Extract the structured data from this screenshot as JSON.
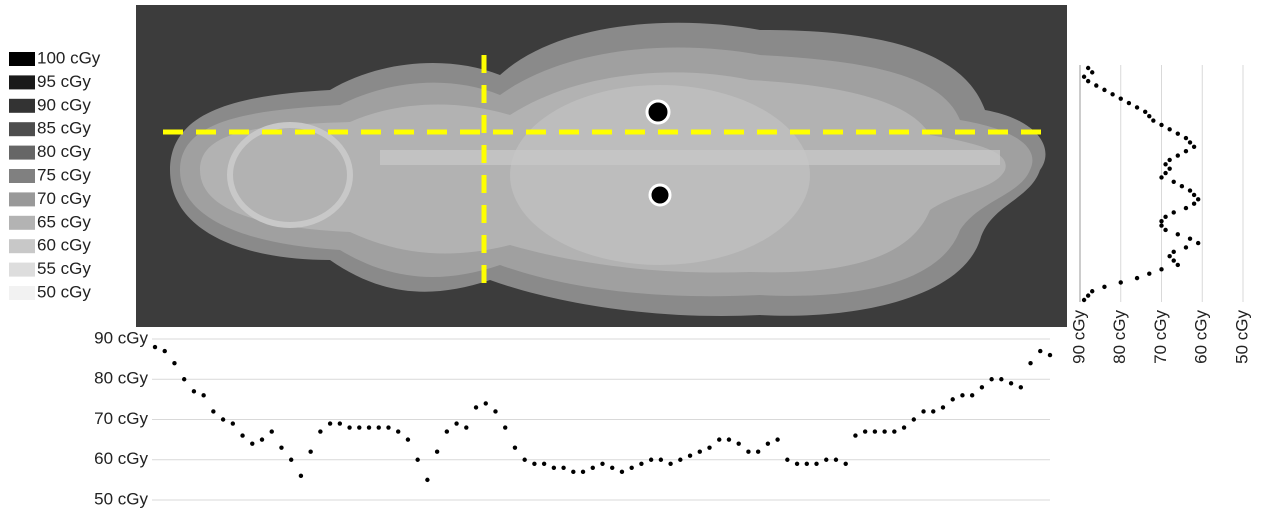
{
  "legend": [
    {
      "label": "100 cGy",
      "color": "#000000"
    },
    {
      "label": "95 cGy",
      "color": "#1a1a1a"
    },
    {
      "label": "90 cGy",
      "color": "#333333"
    },
    {
      "label": "85 cGy",
      "color": "#4d4d4d"
    },
    {
      "label": "80 cGy",
      "color": "#666666"
    },
    {
      "label": "75 cGy",
      "color": "#808080"
    },
    {
      "label": "70 cGy",
      "color": "#999999"
    },
    {
      "label": "65 cGy",
      "color": "#b3b3b3"
    },
    {
      "label": "60 cGy",
      "color": "#c8c8c8"
    },
    {
      "label": "55 cGy",
      "color": "#dddddd"
    },
    {
      "label": "50 cGy",
      "color": "#f2f2f2"
    }
  ],
  "chart_data": [
    {
      "type": "scatter",
      "color": "#000000",
      "grid": true,
      "ylim": [
        50,
        90
      ],
      "yticks": [
        {
          "value": 90,
          "label": "90 cGy"
        },
        {
          "value": 80,
          "label": "80 cGy"
        },
        {
          "value": 70,
          "label": "70 cGy"
        },
        {
          "value": 60,
          "label": "60 cGy"
        },
        {
          "value": 50,
          "label": "50 cGy"
        }
      ],
      "values": [
        88,
        87,
        84,
        80,
        77,
        76,
        72,
        70,
        69,
        66,
        64,
        65,
        67,
        63,
        60,
        56,
        62,
        67,
        69,
        69,
        68,
        68,
        68,
        68,
        68,
        67,
        65,
        60,
        55,
        62,
        67,
        69,
        68,
        73,
        74,
        72,
        68,
        63,
        60,
        59,
        59,
        58,
        58,
        57,
        57,
        58,
        59,
        58,
        57,
        58,
        59,
        60,
        60,
        59,
        60,
        61,
        62,
        63,
        65,
        65,
        64,
        62,
        62,
        64,
        65,
        60,
        59,
        59,
        59,
        60,
        60,
        59,
        66,
        67,
        67,
        67,
        67,
        68,
        70,
        72,
        72,
        73,
        75,
        76,
        76,
        78,
        80,
        80,
        79,
        78,
        84,
        87,
        86
      ]
    },
    {
      "type": "scatter",
      "color": "#000000",
      "grid": true,
      "xlim": [
        90,
        50
      ],
      "xticks": [
        {
          "value": 90,
          "label": "90 cGy"
        },
        {
          "value": 80,
          "label": "80 cGy"
        },
        {
          "value": 70,
          "label": "70 cGy"
        },
        {
          "value": 60,
          "label": "60 cGy"
        },
        {
          "value": 50,
          "label": "50 cGy"
        }
      ],
      "values": [
        88,
        87,
        89,
        88,
        86,
        84,
        82,
        80,
        78,
        76,
        74,
        73,
        72,
        70,
        68,
        66,
        64,
        63,
        62,
        64,
        66,
        68,
        69,
        68,
        69,
        70,
        67,
        65,
        63,
        62,
        61,
        62,
        64,
        67,
        69,
        70,
        70,
        69,
        66,
        63,
        61,
        64,
        67,
        68,
        67,
        66,
        70,
        73,
        76,
        80,
        84,
        87,
        88,
        89
      ]
    }
  ]
}
